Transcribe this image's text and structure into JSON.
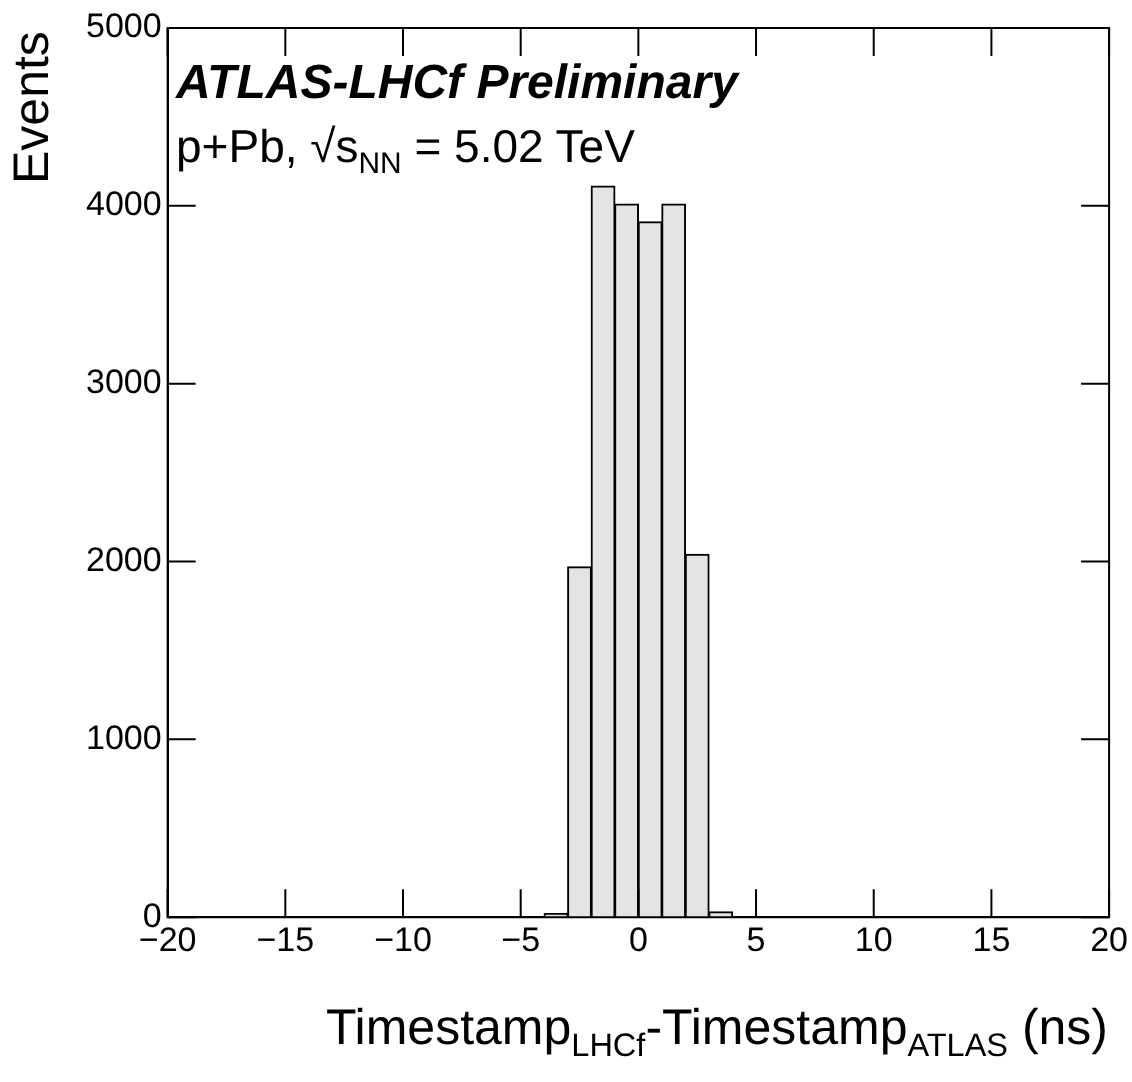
{
  "chart_data": {
    "type": "histogram",
    "title": "ATLAS-LHCf Preliminary",
    "subtitle": "p+Pb, √s$_{NN}$ = 5.02 TeV",
    "xlabel": "Timestamp$_{LHCf}$-Timestamp$_{ATLAS}$ (ns)",
    "ylabel": "Events",
    "bins": [
      -4,
      -3,
      -2,
      -1,
      0,
      1,
      2,
      3,
      4
    ],
    "values": [
      20,
      1970,
      4110,
      4010,
      3910,
      4010,
      2040,
      30
    ],
    "color": "#e4e4e4",
    "xlim": [
      -20,
      20
    ],
    "xticks": [
      {
        "value": -20,
        "label": "−20"
      },
      {
        "value": -15,
        "label": "−15"
      },
      {
        "value": -10,
        "label": "−10"
      },
      {
        "value": -5,
        "label": "−5"
      },
      0,
      5,
      10,
      15,
      20
    ],
    "ylim": [
      0,
      5000
    ],
    "yticks": [
      0,
      1000,
      2000,
      3000,
      4000,
      5000
    ],
    "grid": false,
    "legend": false
  }
}
